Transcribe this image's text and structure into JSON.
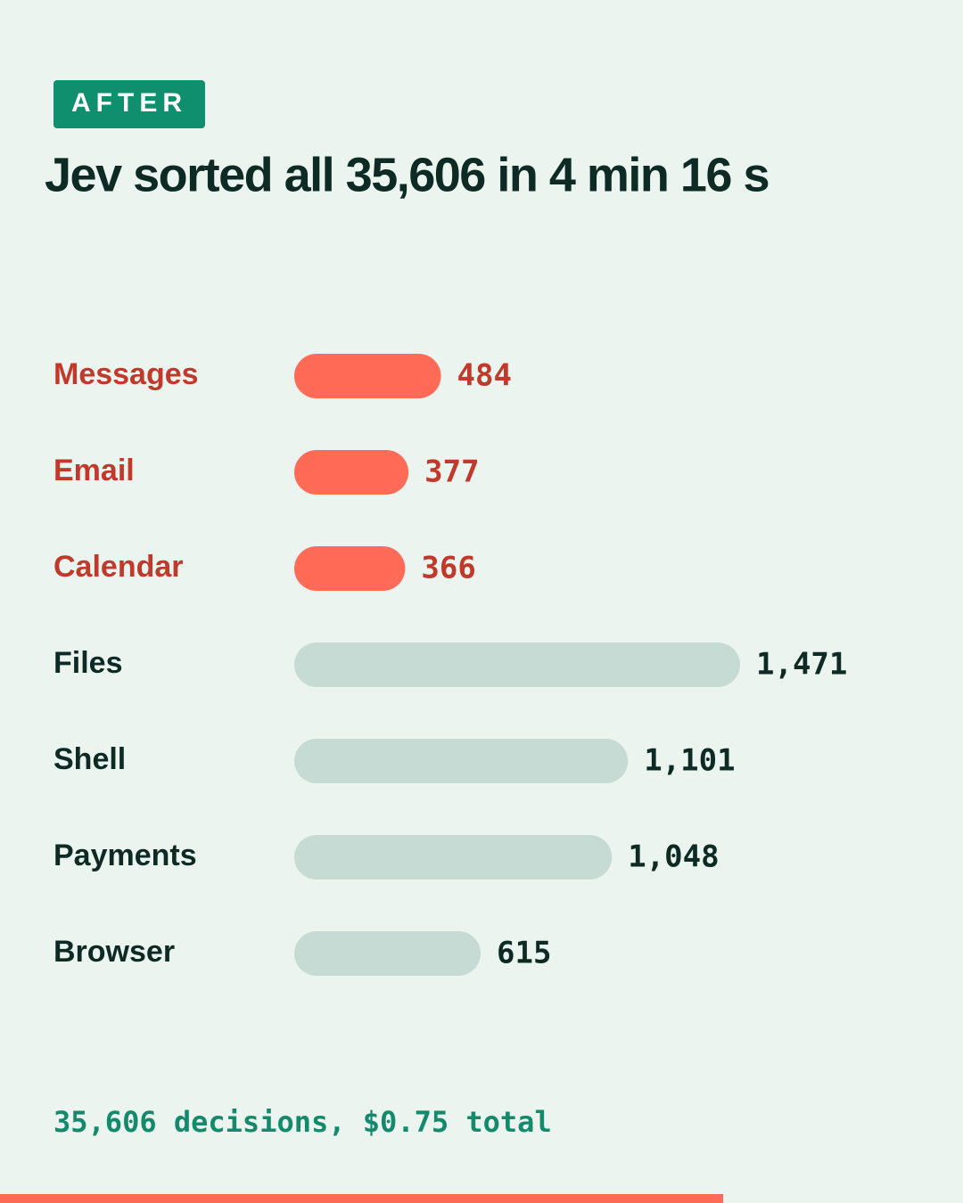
{
  "chart_data": {
    "type": "hbar",
    "badge": "AFTER",
    "title": "Jev sorted all 35,606 in 4 min 16 s",
    "categories": [
      "Messages",
      "Email",
      "Calendar",
      "Files",
      "Shell",
      "Payments",
      "Browser"
    ],
    "values": [
      484,
      377,
      366,
      1471,
      1101,
      1048,
      615
    ],
    "value_labels": [
      "484",
      "377",
      "366",
      "1,471",
      "1,101",
      "1,048",
      "615"
    ],
    "colors": [
      "#ff6b57",
      "#ff6b57",
      "#ff6b57",
      "#c5dbd3",
      "#c5dbd3",
      "#c5dbd3",
      "#c5dbd3"
    ],
    "label_colors": [
      "#c0392b",
      "#c0392b",
      "#c0392b",
      "#0d2a24",
      "#0d2a24",
      "#0d2a24",
      "#0d2a24"
    ],
    "footnote": "35,606 decisions, $0.75 total"
  }
}
